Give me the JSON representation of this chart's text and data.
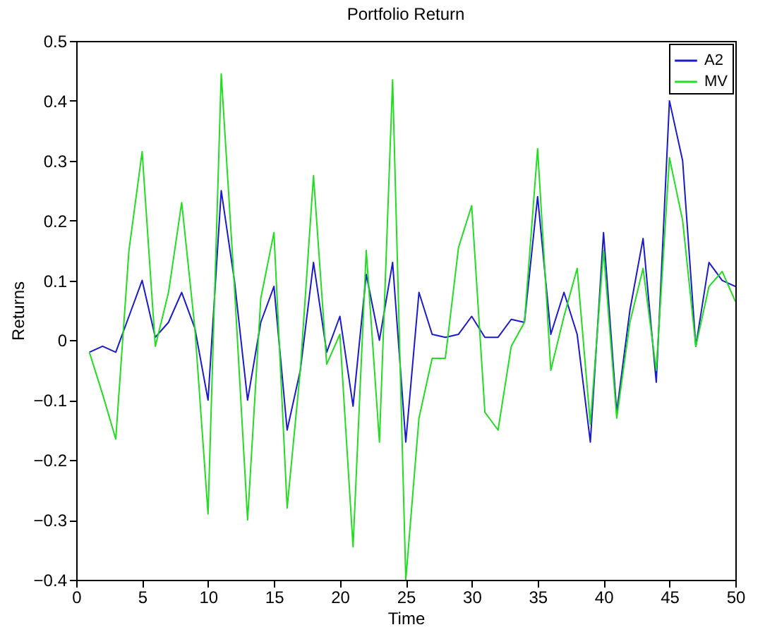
{
  "chart_data": {
    "type": "line",
    "title": "Portfolio Return",
    "xlabel": "Time",
    "ylabel": "Returns",
    "x": [
      1,
      2,
      3,
      4,
      5,
      6,
      7,
      8,
      9,
      10,
      11,
      12,
      13,
      14,
      15,
      16,
      17,
      18,
      19,
      20,
      21,
      22,
      23,
      24,
      25,
      26,
      27,
      28,
      29,
      30,
      31,
      32,
      33,
      34,
      35,
      36,
      37,
      38,
      39,
      40,
      41,
      42,
      43,
      44,
      45,
      46,
      47,
      48,
      49,
      50
    ],
    "series": [
      {
        "name": "A2",
        "color": "#1a1acc",
        "values": [
          -0.02,
          -0.01,
          -0.02,
          0.04,
          0.1,
          0.005,
          0.03,
          0.08,
          0.02,
          -0.1,
          0.25,
          0.1,
          -0.1,
          0.03,
          0.09,
          -0.15,
          -0.05,
          0.13,
          -0.02,
          0.04,
          -0.11,
          0.11,
          0.0,
          0.13,
          -0.17,
          0.08,
          0.01,
          0.005,
          0.01,
          0.04,
          0.005,
          0.005,
          0.035,
          0.03,
          0.24,
          0.01,
          0.08,
          0.01,
          -0.17,
          0.18,
          -0.12,
          0.05,
          0.17,
          -0.07,
          0.4,
          0.3,
          -0.01,
          0.13,
          0.1,
          0.09
        ]
      },
      {
        "name": "MV",
        "color": "#22dd22",
        "values": [
          -0.02,
          -0.09,
          -0.165,
          0.15,
          0.315,
          -0.01,
          0.08,
          0.23,
          0.02,
          -0.29,
          0.445,
          0.09,
          -0.3,
          0.07,
          0.18,
          -0.28,
          -0.05,
          0.275,
          -0.04,
          0.01,
          -0.345,
          0.15,
          -0.17,
          0.435,
          -0.4,
          -0.13,
          -0.03,
          -0.03,
          0.155,
          0.225,
          -0.12,
          -0.15,
          -0.01,
          0.03,
          0.32,
          -0.05,
          0.04,
          0.12,
          -0.14,
          0.15,
          -0.13,
          0.03,
          0.12,
          -0.05,
          0.305,
          0.2,
          -0.01,
          0.09,
          0.115,
          0.065
        ]
      }
    ],
    "xlim": [
      0,
      50
    ],
    "xticks": [
      0,
      5,
      10,
      15,
      20,
      25,
      30,
      35,
      40,
      45,
      50
    ],
    "ylim": [
      -0.4,
      0.5
    ],
    "yticks": [
      -0.4,
      -0.3,
      -0.2,
      -0.1,
      0,
      0.1,
      0.2,
      0.3,
      0.4,
      0.5
    ],
    "legend": "top right",
    "grid": false
  }
}
